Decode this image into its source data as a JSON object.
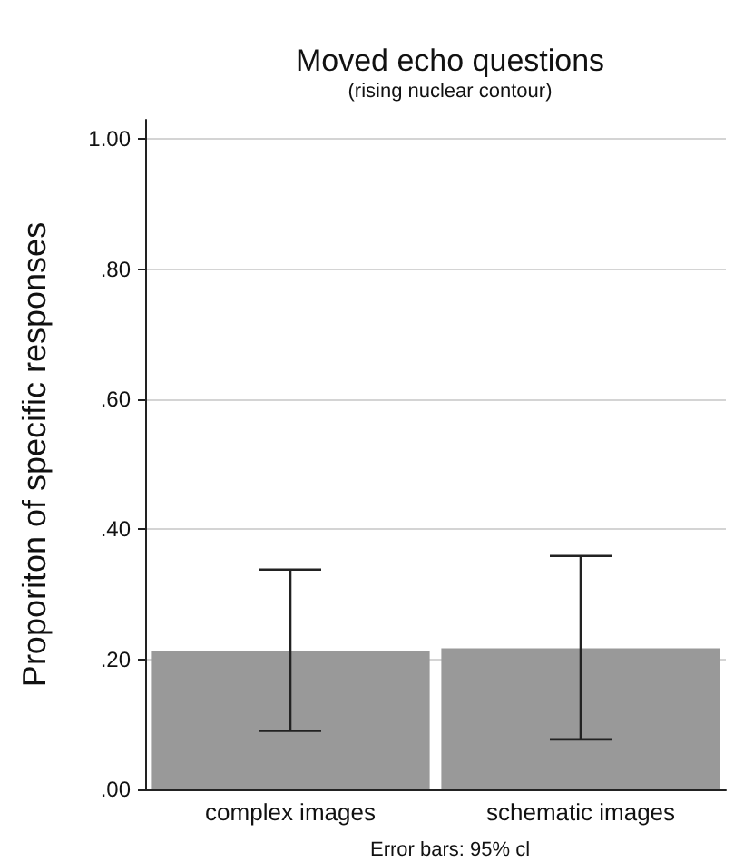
{
  "chart_data": {
    "type": "bar",
    "title": "Moved echo questions",
    "subtitle": "(rising nuclear contour)",
    "ylabel": "Proporiton of specific responses",
    "categories": [
      "complex images",
      "schematic images"
    ],
    "values": [
      0.213,
      0.217
    ],
    "color": "#999999",
    "errors": [
      [
        0.09,
        0.338
      ],
      [
        0.077,
        0.359
      ]
    ],
    "ylim": [
      0,
      1.03
    ],
    "yticks": [
      {
        "value": 0,
        "label": ".00"
      },
      {
        "value": 0.2,
        "label": ".20"
      },
      {
        "value": 0.4,
        "label": ".40"
      },
      {
        "value": 0.6,
        "label": ".60"
      },
      {
        "value": 0.8,
        "label": ".80"
      },
      {
        "value": 1,
        "label": "1.00"
      }
    ],
    "grid": "y",
    "annotations": [
      "Error bars: 95% cl"
    ]
  }
}
